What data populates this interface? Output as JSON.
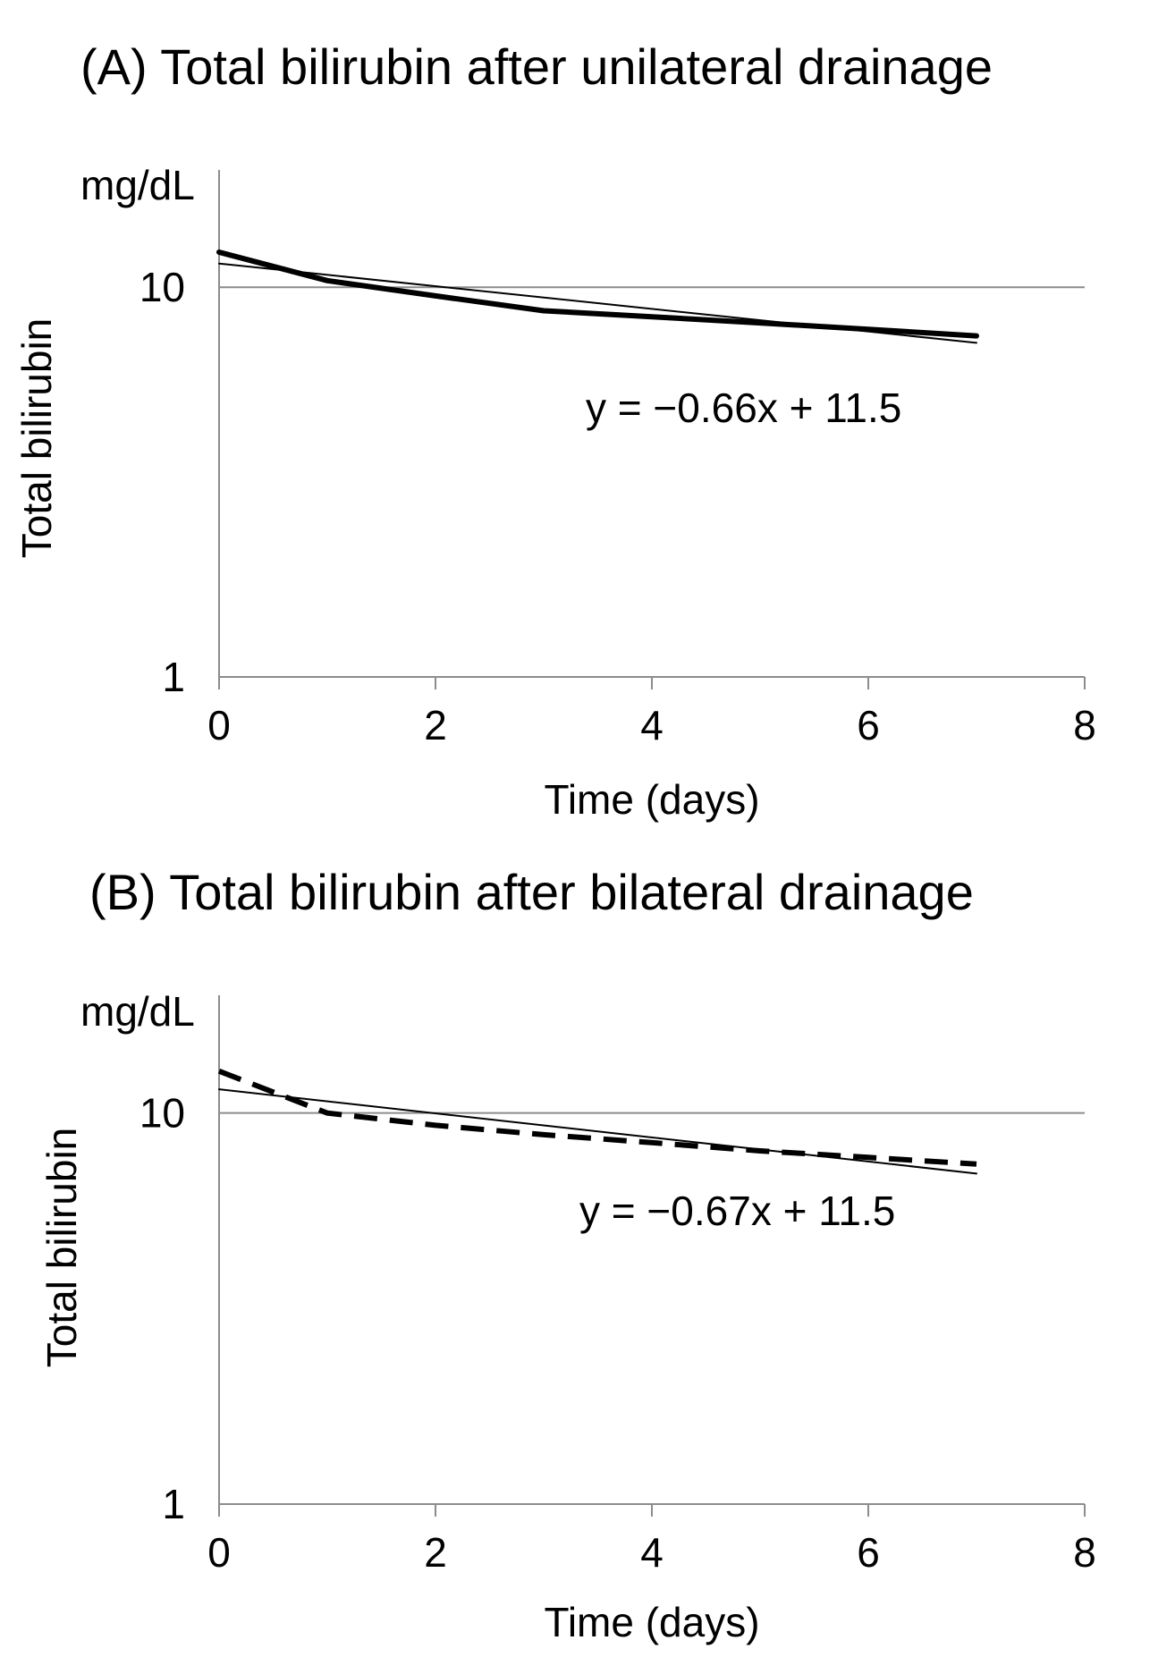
{
  "chart_data": [
    {
      "panel": "A",
      "type": "line",
      "title": "(A) Total bilirubin after unilateral drainage",
      "unit_label": "mg/dL",
      "xlabel": "Time (days)",
      "ylabel": "Total bilirubin",
      "yscale": "log",
      "xlim": [
        0,
        8
      ],
      "ylim": [
        1,
        20
      ],
      "xticks": [
        "0",
        "2",
        "4",
        "6",
        "8"
      ],
      "yticks": [
        {
          "value": 1,
          "label": "1"
        },
        {
          "value": 10,
          "label": "10"
        }
      ],
      "series": [
        {
          "name": "Total bilirubin",
          "style": "solid-thick",
          "x": [
            0,
            1,
            2,
            3,
            4,
            5,
            6,
            7
          ],
          "values": [
            12.3,
            10.4,
            9.5,
            8.7,
            8.4,
            8.1,
            7.8,
            7.5
          ]
        },
        {
          "name": "Trend line",
          "style": "solid-thin",
          "x": [
            0,
            7
          ],
          "values": [
            11.5,
            7.2
          ]
        }
      ],
      "equation": "y = −0.66x + 11.5"
    },
    {
      "panel": "B",
      "type": "line",
      "title": "(B) Total bilirubin after bilateral drainage",
      "unit_label": "mg/dL",
      "xlabel": "Time (days)",
      "ylabel": "Total bilirubin",
      "yscale": "log",
      "xlim": [
        0,
        8
      ],
      "ylim": [
        1,
        20
      ],
      "xticks": [
        "0",
        "2",
        "4",
        "6",
        "8"
      ],
      "yticks": [
        {
          "value": 1,
          "label": "1"
        },
        {
          "value": 10,
          "label": "10"
        }
      ],
      "series": [
        {
          "name": "Total bilirubin",
          "style": "dashed-thick",
          "x": [
            0,
            1,
            2,
            3,
            4,
            5,
            6,
            7
          ],
          "values": [
            12.8,
            10.0,
            9.3,
            8.8,
            8.4,
            8.0,
            7.7,
            7.4
          ]
        },
        {
          "name": "Trend line",
          "style": "solid-thin",
          "x": [
            0,
            7
          ],
          "values": [
            11.5,
            7.0
          ]
        }
      ],
      "equation": "y = −0.67x + 11.5"
    }
  ]
}
